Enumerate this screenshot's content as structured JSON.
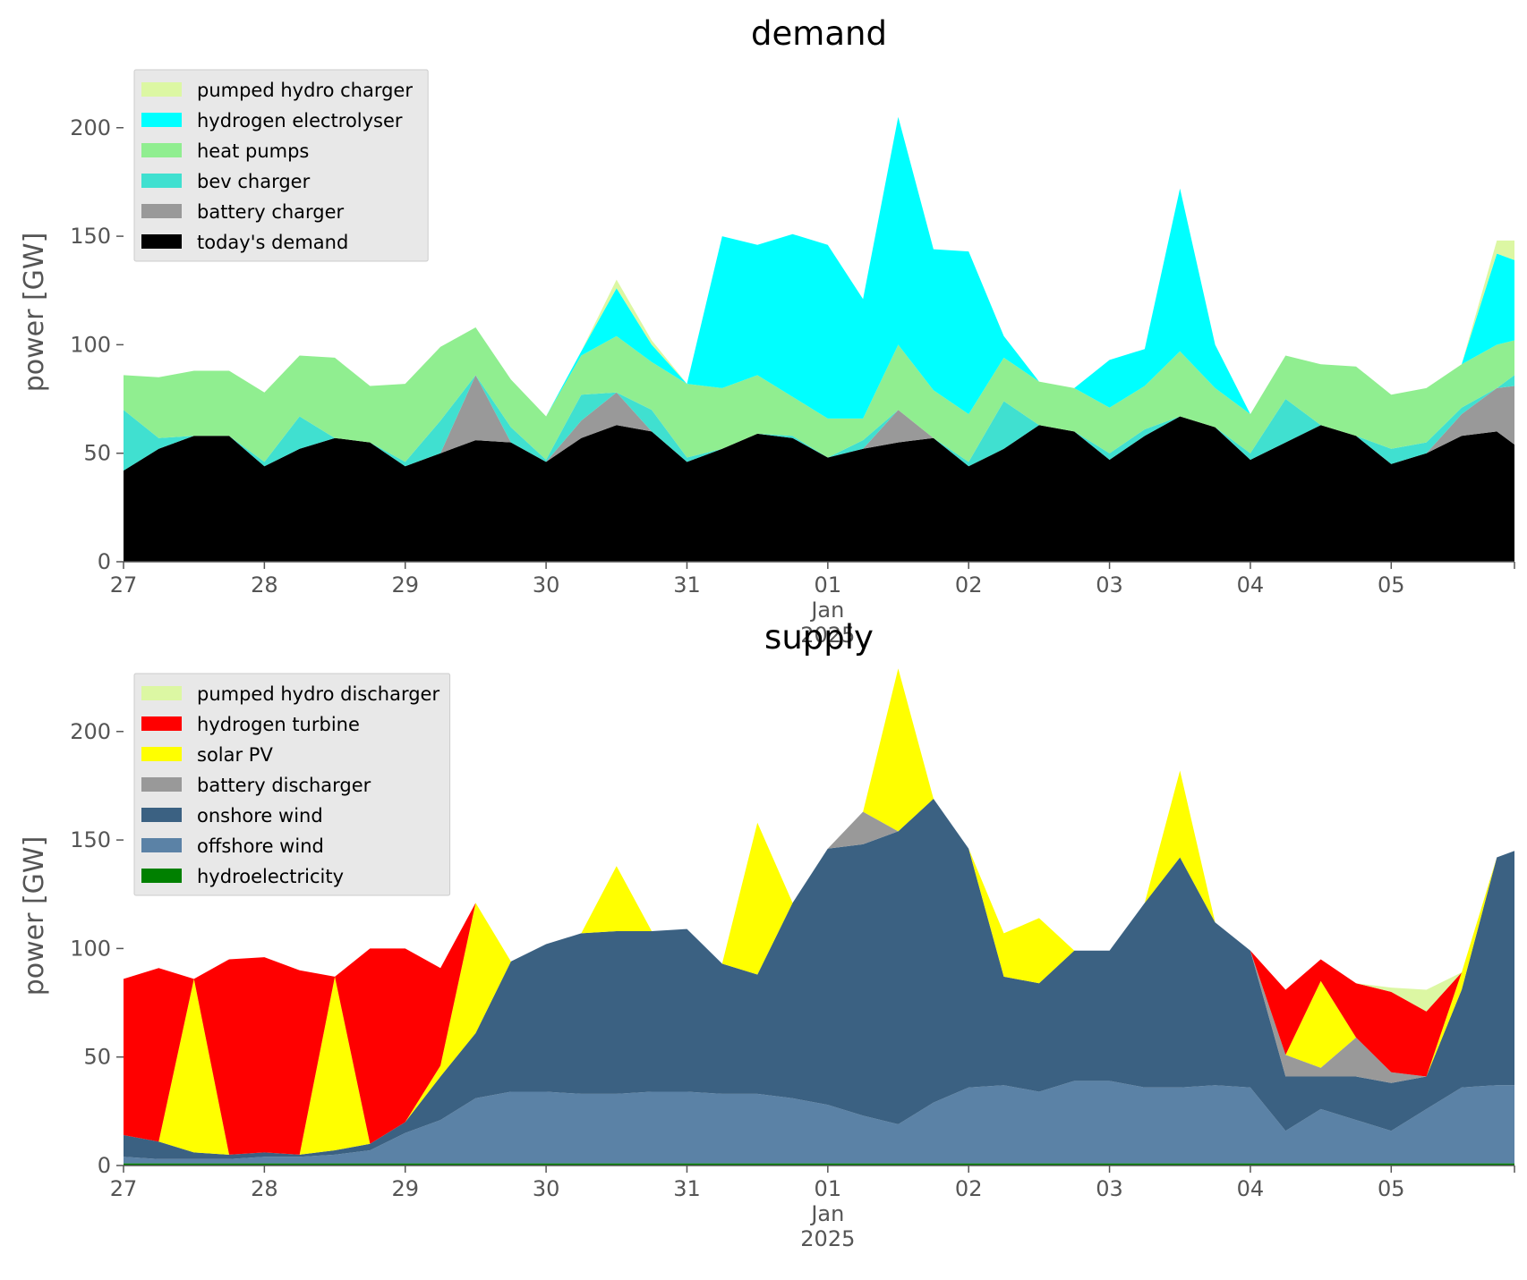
{
  "chart_data": [
    {
      "type": "area",
      "stacked": true,
      "title": "demand",
      "ylabel": "power [GW]",
      "ylim": [
        0,
        230
      ],
      "yticks": [
        0,
        50,
        100,
        150,
        200
      ],
      "xlim": [
        "2024-12-27T00:00",
        "2025-01-05T21:00"
      ],
      "x_tick_labels": [
        "27",
        "28",
        "29",
        "30",
        "31",
        "01",
        "02",
        "03",
        "04",
        "05"
      ],
      "x_sublabel": [
        "Jan",
        "2025"
      ],
      "legend_position": "upper-left",
      "x": [
        "2024-12-27T00:00",
        "2024-12-27T06:00",
        "2024-12-27T12:00",
        "2024-12-27T18:00",
        "2024-12-28T00:00",
        "2024-12-28T06:00",
        "2024-12-28T12:00",
        "2024-12-28T18:00",
        "2024-12-29T00:00",
        "2024-12-29T06:00",
        "2024-12-29T12:00",
        "2024-12-29T18:00",
        "2024-12-30T00:00",
        "2024-12-30T06:00",
        "2024-12-30T12:00",
        "2024-12-30T18:00",
        "2024-12-31T00:00",
        "2024-12-31T06:00",
        "2024-12-31T12:00",
        "2024-12-31T18:00",
        "2025-01-01T00:00",
        "2025-01-01T06:00",
        "2025-01-01T12:00",
        "2025-01-01T18:00",
        "2025-01-02T00:00",
        "2025-01-02T06:00",
        "2025-01-02T12:00",
        "2025-01-02T18:00",
        "2025-01-03T00:00",
        "2025-01-03T06:00",
        "2025-01-03T12:00",
        "2025-01-03T18:00",
        "2025-01-04T00:00",
        "2025-01-04T06:00",
        "2025-01-04T12:00",
        "2025-01-04T18:00",
        "2025-01-05T00:00",
        "2025-01-05T06:00",
        "2025-01-05T12:00",
        "2025-01-05T18:00",
        "2025-01-05T21:00"
      ],
      "series": [
        {
          "name": "today's demand",
          "color": "#000000",
          "values": [
            42,
            52,
            58,
            58,
            44,
            52,
            57,
            55,
            44,
            50,
            56,
            55,
            46,
            57,
            63,
            60,
            46,
            52,
            59,
            57,
            48,
            52,
            55,
            57,
            44,
            52,
            63,
            60,
            47,
            58,
            67,
            62,
            47,
            55,
            63,
            58,
            45,
            50,
            58,
            60,
            54
          ]
        },
        {
          "name": "battery charger",
          "color": "#999999",
          "values": [
            0,
            0,
            0,
            0,
            0,
            0,
            0,
            0,
            0,
            0,
            30,
            0,
            0,
            8,
            15,
            0,
            0,
            0,
            0,
            0,
            0,
            0,
            15,
            0,
            0,
            0,
            0,
            0,
            0,
            0,
            0,
            0,
            0,
            0,
            0,
            0,
            0,
            0,
            10,
            20,
            27
          ]
        },
        {
          "name": "bev charger",
          "color": "#40e0d0",
          "values": [
            28,
            5,
            0,
            0,
            2,
            15,
            0,
            0,
            2,
            15,
            0,
            7,
            1,
            12,
            0,
            10,
            2,
            0,
            0,
            1,
            0,
            4,
            0,
            0,
            2,
            22,
            0,
            0,
            3,
            3,
            0,
            0,
            3,
            20,
            0,
            0,
            7,
            5,
            3,
            0,
            5
          ]
        },
        {
          "name": "heat pumps",
          "color": "#90ee90",
          "values": [
            16,
            28,
            30,
            30,
            32,
            28,
            37,
            26,
            36,
            34,
            22,
            22,
            20,
            18,
            26,
            22,
            34,
            28,
            27,
            18,
            18,
            10,
            30,
            22,
            22,
            20,
            20,
            20,
            21,
            20,
            30,
            18,
            18,
            20,
            28,
            32,
            25,
            25,
            20,
            20,
            16
          ]
        },
        {
          "name": "hydrogen electrolyser",
          "color": "#00ffff",
          "values": [
            0,
            0,
            0,
            0,
            0,
            0,
            0,
            0,
            0,
            0,
            0,
            0,
            0,
            2,
            22,
            8,
            0,
            70,
            60,
            75,
            80,
            55,
            105,
            65,
            75,
            10,
            0,
            0,
            22,
            17,
            75,
            20,
            0,
            0,
            0,
            0,
            0,
            0,
            0,
            42,
            37
          ]
        },
        {
          "name": "pumped hydro charger",
          "color": "#dcf7a3",
          "values": [
            0,
            0,
            0,
            0,
            0,
            0,
            0,
            0,
            0,
            0,
            0,
            0,
            0,
            0,
            4,
            2,
            0,
            0,
            0,
            0,
            0,
            0,
            0,
            0,
            0,
            0,
            0,
            0,
            0,
            0,
            0,
            0,
            0,
            0,
            0,
            0,
            0,
            0,
            0,
            6,
            9
          ]
        }
      ]
    },
    {
      "type": "area",
      "stacked": true,
      "title": "supply",
      "ylabel": "power [GW]",
      "ylim": [
        0,
        230
      ],
      "yticks": [
        0,
        50,
        100,
        150,
        200
      ],
      "xlim": [
        "2024-12-27T00:00",
        "2025-01-05T21:00"
      ],
      "x_tick_labels": [
        "27",
        "28",
        "29",
        "30",
        "31",
        "01",
        "02",
        "03",
        "04",
        "05"
      ],
      "x_sublabel": [
        "Jan",
        "2025"
      ],
      "legend_position": "upper-left",
      "x": [
        "2024-12-27T00:00",
        "2024-12-27T06:00",
        "2024-12-27T12:00",
        "2024-12-27T18:00",
        "2024-12-28T00:00",
        "2024-12-28T06:00",
        "2024-12-28T12:00",
        "2024-12-28T18:00",
        "2024-12-29T00:00",
        "2024-12-29T06:00",
        "2024-12-29T12:00",
        "2024-12-29T18:00",
        "2024-12-30T00:00",
        "2024-12-30T06:00",
        "2024-12-30T12:00",
        "2024-12-30T18:00",
        "2024-12-31T00:00",
        "2024-12-31T06:00",
        "2024-12-31T12:00",
        "2024-12-31T18:00",
        "2025-01-01T00:00",
        "2025-01-01T06:00",
        "2025-01-01T12:00",
        "2025-01-01T18:00",
        "2025-01-02T00:00",
        "2025-01-02T06:00",
        "2025-01-02T12:00",
        "2025-01-02T18:00",
        "2025-01-03T00:00",
        "2025-01-03T06:00",
        "2025-01-03T12:00",
        "2025-01-03T18:00",
        "2025-01-04T00:00",
        "2025-01-04T06:00",
        "2025-01-04T12:00",
        "2025-01-04T18:00",
        "2025-01-05T00:00",
        "2025-01-05T06:00",
        "2025-01-05T12:00",
        "2025-01-05T18:00",
        "2025-01-05T21:00"
      ],
      "series": [
        {
          "name": "hydroelectricity",
          "color": "#008000",
          "values": [
            1,
            1,
            1,
            1,
            1,
            1,
            1,
            1,
            1,
            1,
            1,
            1,
            1,
            1,
            1,
            1,
            1,
            1,
            1,
            1,
            1,
            1,
            1,
            1,
            1,
            1,
            1,
            1,
            1,
            1,
            1,
            1,
            1,
            1,
            1,
            1,
            1,
            1,
            1,
            1,
            1
          ]
        },
        {
          "name": "offshore wind",
          "color": "#5b82a6",
          "values": [
            3,
            2,
            2,
            2,
            3,
            3,
            4,
            6,
            14,
            20,
            30,
            33,
            33,
            32,
            32,
            33,
            33,
            32,
            32,
            30,
            27,
            22,
            18,
            28,
            35,
            36,
            33,
            38,
            38,
            35,
            35,
            36,
            35,
            15,
            25,
            20,
            15,
            25,
            35,
            36,
            36
          ]
        },
        {
          "name": "onshore wind",
          "color": "#3b6182",
          "values": [
            10,
            8,
            3,
            2,
            2,
            1,
            2,
            3,
            5,
            20,
            30,
            60,
            68,
            74,
            75,
            74,
            75,
            60,
            55,
            90,
            118,
            125,
            135,
            140,
            110,
            50,
            50,
            60,
            60,
            85,
            106,
            75,
            63,
            25,
            15,
            20,
            22,
            15,
            45,
            105,
            108
          ]
        },
        {
          "name": "battery discharger",
          "color": "#999999",
          "values": [
            0,
            0,
            0,
            0,
            0,
            0,
            0,
            0,
            0,
            0,
            0,
            0,
            0,
            0,
            0,
            0,
            0,
            0,
            0,
            0,
            0,
            15,
            0,
            0,
            0,
            0,
            0,
            0,
            0,
            0,
            0,
            0,
            0,
            10,
            4,
            18,
            5,
            0,
            0,
            0,
            0
          ]
        },
        {
          "name": "solar PV",
          "color": "#ffff00",
          "values": [
            0,
            0,
            80,
            0,
            0,
            0,
            80,
            0,
            0,
            5,
            60,
            0,
            0,
            0,
            30,
            0,
            0,
            0,
            70,
            0,
            0,
            0,
            75,
            0,
            0,
            20,
            30,
            0,
            0,
            0,
            40,
            0,
            0,
            0,
            40,
            0,
            0,
            0,
            8,
            0,
            0
          ]
        },
        {
          "name": "hydrogen turbine",
          "color": "#ff0000",
          "values": [
            72,
            80,
            0,
            90,
            90,
            85,
            0,
            90,
            80,
            45,
            0,
            0,
            0,
            0,
            0,
            0,
            0,
            0,
            0,
            0,
            0,
            0,
            0,
            0,
            0,
            0,
            0,
            0,
            0,
            0,
            0,
            0,
            0,
            30,
            10,
            25,
            37,
            30,
            0,
            0,
            0
          ]
        },
        {
          "name": "pumped hydro discharger",
          "color": "#dcf7a3",
          "values": [
            0,
            0,
            0,
            0,
            0,
            0,
            0,
            0,
            0,
            0,
            0,
            0,
            0,
            0,
            0,
            0,
            0,
            0,
            0,
            0,
            0,
            0,
            0,
            0,
            0,
            0,
            0,
            0,
            0,
            0,
            0,
            0,
            0,
            0,
            0,
            0,
            2,
            10,
            0,
            0,
            0
          ]
        }
      ]
    }
  ]
}
